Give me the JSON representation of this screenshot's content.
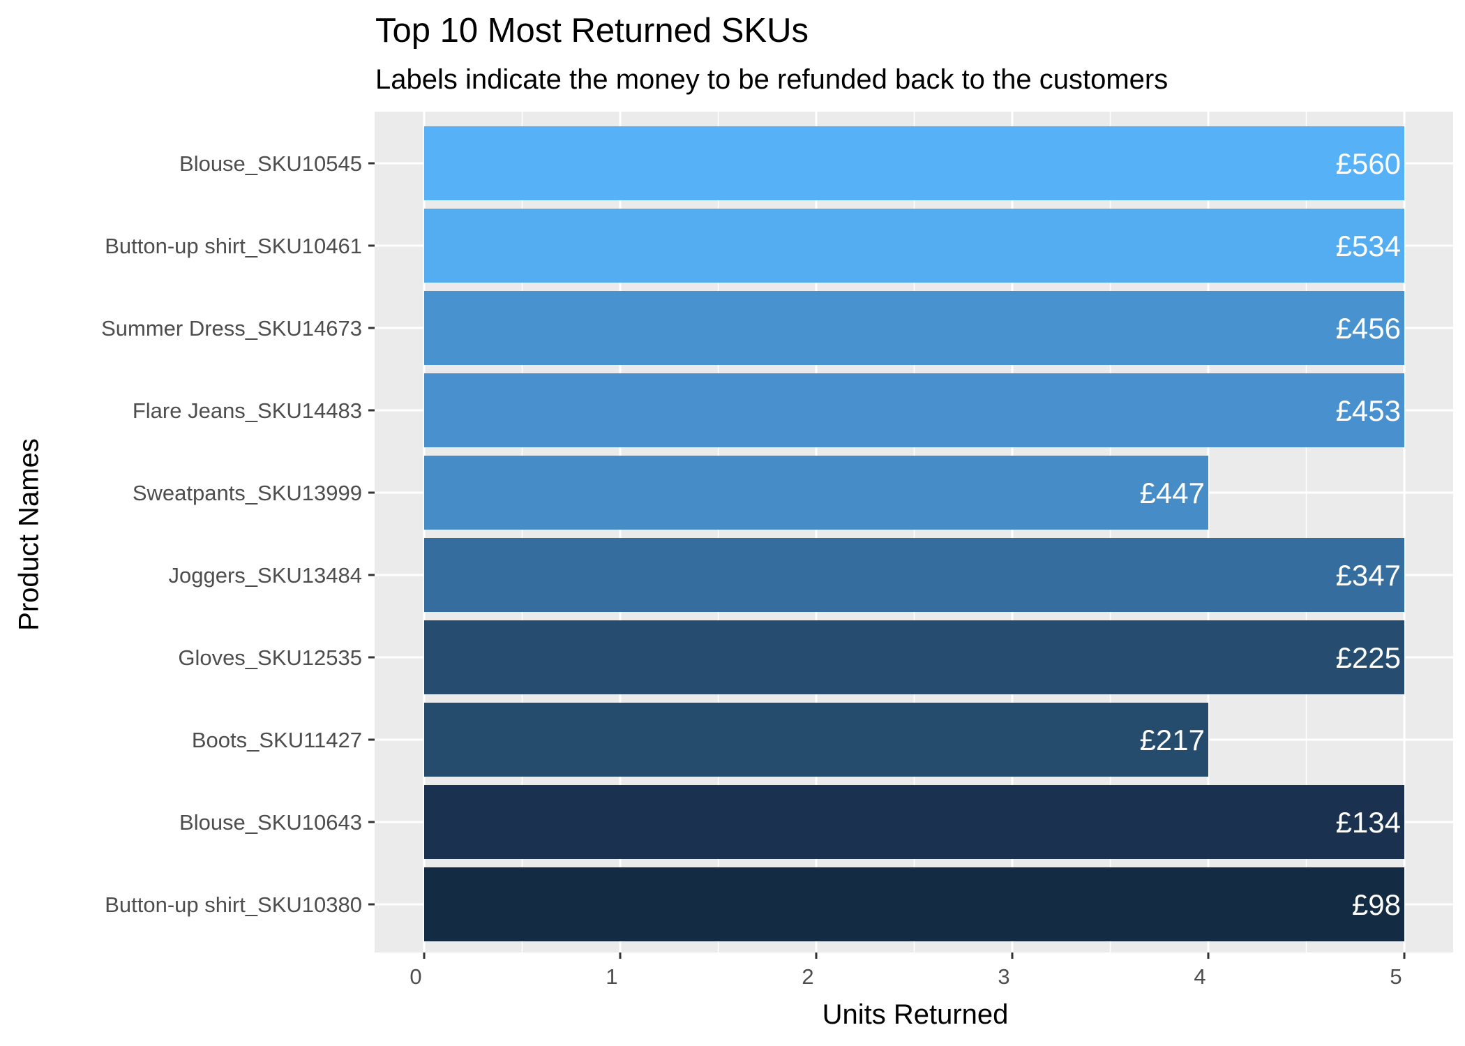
{
  "chart_data": {
    "type": "bar",
    "orientation": "horizontal",
    "title": "Top 10 Most Returned SKUs",
    "subtitle": "Labels indicate the money to be refunded back to the customers",
    "xlabel": "Units Returned",
    "ylabel": "Product Names",
    "xlim": [
      0,
      5
    ],
    "xticks": [
      "0",
      "1",
      "2",
      "3",
      "4",
      "5"
    ],
    "grid": true,
    "categories": [
      "Blouse_SKU10545",
      "Button-up shirt_SKU10461",
      "Summer Dress_SKU14673",
      "Flare Jeans_SKU14483",
      "Sweatpants_SKU13999",
      "Joggers_SKU13484",
      "Gloves_SKU12535",
      "Boots_SKU11427",
      "Blouse_SKU10643",
      "Button-up shirt_SKU10380"
    ],
    "values": [
      5,
      5,
      5,
      5,
      4,
      5,
      5,
      4,
      5,
      5
    ],
    "labels": [
      "£560",
      "£534",
      "£456",
      "£453",
      "£447",
      "£347",
      "£225",
      "£217",
      "£134",
      "£98"
    ],
    "colors": [
      "#56B1F7",
      "#54ACF1",
      "#4892CF",
      "#4891CE",
      "#468DC8",
      "#356D9F",
      "#264D6F",
      "#254B6D",
      "#1A324F",
      "#132B43"
    ],
    "panel_background": "#EBEBEB",
    "grid_color": "#FFFFFF"
  }
}
